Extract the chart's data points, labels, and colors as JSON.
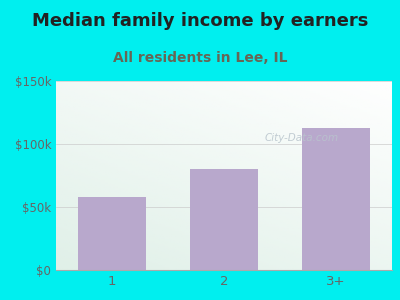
{
  "title": "Median family income by earners",
  "subtitle": "All residents in Lee, IL",
  "categories": [
    "1",
    "2",
    "3+"
  ],
  "values": [
    58000,
    80000,
    113000
  ],
  "bar_color": "#b8a8cc",
  "background_color": "#00efef",
  "plot_bg_color_lt": "#e0f0e8",
  "plot_bg_color_rb": "#f8fff8",
  "ylim": [
    0,
    150000
  ],
  "yticks": [
    0,
    50000,
    100000,
    150000
  ],
  "ytick_labels": [
    "$0",
    "$50k",
    "$100k",
    "$150k"
  ],
  "title_fontsize": 13,
  "subtitle_fontsize": 10,
  "title_color": "#222222",
  "subtitle_color": "#666655",
  "watermark": "City-Data.com",
  "watermark_color": "#b8c4cc",
  "tick_color": "#666666"
}
